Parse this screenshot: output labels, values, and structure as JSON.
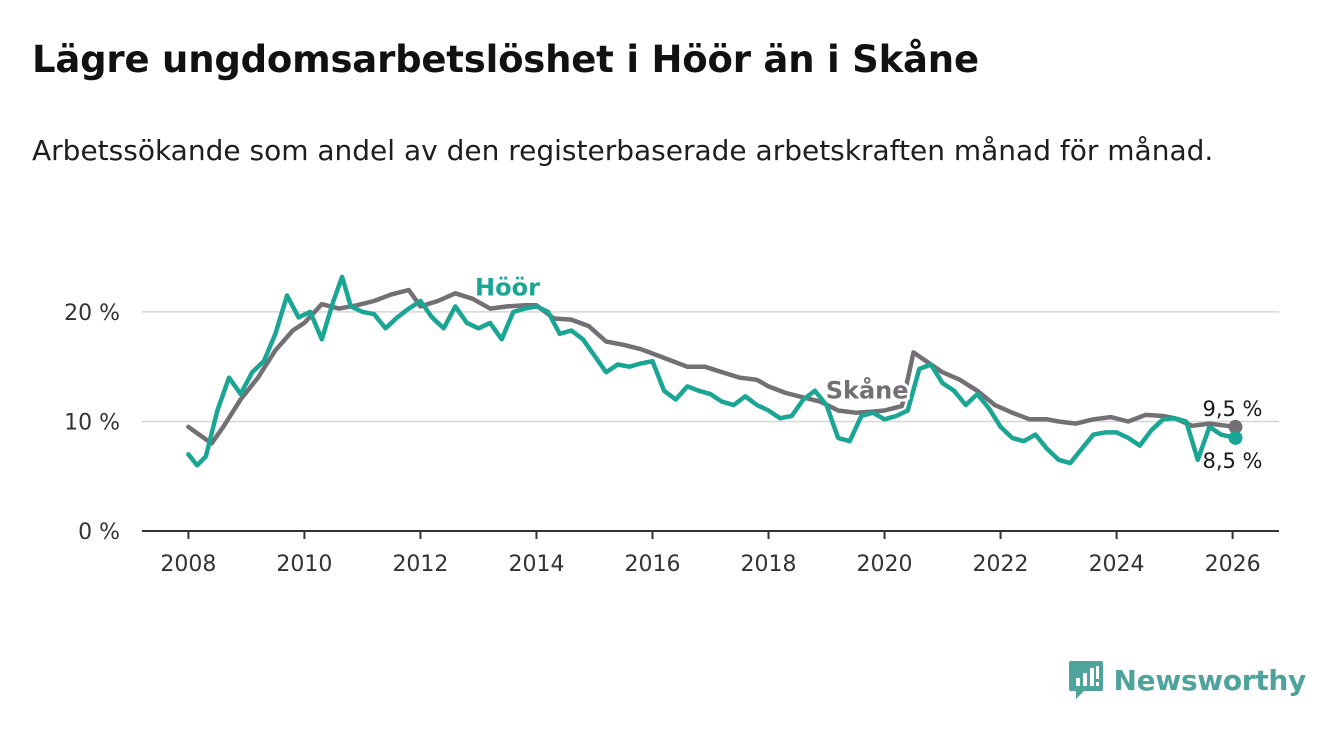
{
  "header": {
    "title": "Lägre ungdomsarbetslöshet i Höör än i Skåne",
    "subtitle": "Arbetssökande som andel av den registerbaserade arbetskraften månad för månad."
  },
  "brand": {
    "name": "Newsworthy",
    "color": "#4fa39d"
  },
  "chart_data": {
    "type": "line",
    "title": "Lägre ungdomsarbetslöshet i Höör än i Skåne",
    "xlabel": "",
    "ylabel": "",
    "xlim": [
      2007.2,
      2026.8
    ],
    "ylim": [
      0,
      22
    ],
    "x_ticks": [
      2008,
      2010,
      2012,
      2014,
      2016,
      2018,
      2020,
      2022,
      2024,
      2026
    ],
    "x_tick_labels": [
      "2008",
      "2010",
      "2012",
      "2014",
      "2016",
      "2018",
      "2020",
      "2022",
      "2024",
      "2026"
    ],
    "y_ticks": [
      0,
      10,
      20
    ],
    "y_tick_labels": [
      "0 %",
      "10 %",
      "20 %"
    ],
    "grid": true,
    "series": [
      {
        "name": "Skåne",
        "color": "#727075",
        "end_label": "9,5 %",
        "x": [
          2008.0,
          2008.4,
          2008.6,
          2008.9,
          2009.2,
          2009.5,
          2009.8,
          2010.0,
          2010.3,
          2010.6,
          2010.9,
          2011.2,
          2011.5,
          2011.8,
          2012.0,
          2012.3,
          2012.6,
          2012.9,
          2013.2,
          2013.5,
          2013.8,
          2014.0,
          2014.3,
          2014.6,
          2014.9,
          2015.2,
          2015.5,
          2015.8,
          2016.0,
          2016.3,
          2016.6,
          2016.9,
          2017.2,
          2017.5,
          2017.8,
          2018.0,
          2018.3,
          2018.6,
          2018.9,
          2019.2,
          2019.5,
          2019.8,
          2020.0,
          2020.3,
          2020.5,
          2020.8,
          2021.0,
          2021.3,
          2021.6,
          2021.9,
          2022.2,
          2022.5,
          2022.8,
          2023.0,
          2023.3,
          2023.6,
          2023.9,
          2024.2,
          2024.5,
          2024.8,
          2025.0,
          2025.3,
          2025.6,
          2025.9,
          2026.05
        ],
        "values": [
          9.5,
          8.0,
          9.5,
          12.0,
          14.0,
          16.5,
          18.3,
          19.0,
          20.7,
          20.3,
          20.6,
          21.0,
          21.6,
          22.0,
          20.5,
          21.0,
          21.7,
          21.2,
          20.3,
          20.5,
          20.6,
          20.6,
          19.4,
          19.3,
          18.7,
          17.3,
          17.0,
          16.6,
          16.2,
          15.6,
          15.0,
          15.0,
          14.5,
          14.0,
          13.8,
          13.2,
          12.6,
          12.2,
          11.8,
          11.0,
          10.8,
          10.9,
          11.0,
          11.4,
          16.3,
          15.2,
          14.5,
          13.8,
          12.8,
          11.5,
          10.8,
          10.2,
          10.2,
          10.0,
          9.8,
          10.2,
          10.4,
          10.0,
          10.6,
          10.5,
          10.3,
          9.6,
          9.8,
          9.6,
          9.5
        ]
      },
      {
        "name": "Höör",
        "color": "#1aa595",
        "end_label": "8,5 %",
        "x": [
          2008.0,
          2008.15,
          2008.3,
          2008.5,
          2008.7,
          2008.9,
          2009.1,
          2009.3,
          2009.5,
          2009.7,
          2009.9,
          2010.1,
          2010.3,
          2010.5,
          2010.65,
          2010.8,
          2011.0,
          2011.2,
          2011.4,
          2011.6,
          2011.8,
          2012.0,
          2012.2,
          2012.4,
          2012.6,
          2012.8,
          2013.0,
          2013.2,
          2013.4,
          2013.6,
          2013.8,
          2014.0,
          2014.2,
          2014.4,
          2014.6,
          2014.8,
          2015.0,
          2015.2,
          2015.4,
          2015.6,
          2015.8,
          2016.0,
          2016.2,
          2016.4,
          2016.6,
          2016.8,
          2017.0,
          2017.2,
          2017.4,
          2017.6,
          2017.8,
          2018.0,
          2018.2,
          2018.4,
          2018.6,
          2018.8,
          2019.0,
          2019.2,
          2019.4,
          2019.6,
          2019.8,
          2020.0,
          2020.2,
          2020.4,
          2020.6,
          2020.8,
          2021.0,
          2021.2,
          2021.4,
          2021.6,
          2021.8,
          2022.0,
          2022.2,
          2022.4,
          2022.6,
          2022.8,
          2023.0,
          2023.2,
          2023.4,
          2023.6,
          2023.8,
          2024.0,
          2024.2,
          2024.4,
          2024.6,
          2024.8,
          2025.0,
          2025.2,
          2025.4,
          2025.6,
          2025.8,
          2026.05
        ],
        "values": [
          7.0,
          6.0,
          6.8,
          11.0,
          14.0,
          12.5,
          14.5,
          15.5,
          18.0,
          21.5,
          19.5,
          20.0,
          17.5,
          21.0,
          23.2,
          20.5,
          20.0,
          19.8,
          18.5,
          19.5,
          20.3,
          21.0,
          19.5,
          18.5,
          20.5,
          19.0,
          18.5,
          19.0,
          17.5,
          20.0,
          20.3,
          20.5,
          20.0,
          18.0,
          18.3,
          17.5,
          16.0,
          14.5,
          15.2,
          15.0,
          15.3,
          15.5,
          12.8,
          12.0,
          13.2,
          12.8,
          12.5,
          11.8,
          11.5,
          12.3,
          11.5,
          11.0,
          10.3,
          10.5,
          12.0,
          12.8,
          11.5,
          8.5,
          8.2,
          10.5,
          10.8,
          10.2,
          10.5,
          11.0,
          14.8,
          15.2,
          13.5,
          12.8,
          11.5,
          12.5,
          11.2,
          9.5,
          8.5,
          8.2,
          8.8,
          7.5,
          6.5,
          6.2,
          7.5,
          8.8,
          9.0,
          9.0,
          8.5,
          7.8,
          9.2,
          10.2,
          10.3,
          10.0,
          6.5,
          9.5,
          8.8,
          8.5
        ]
      }
    ],
    "annotations": [
      {
        "text": "Höör",
        "x": 2013.5,
        "y": 21.5,
        "series": "Höör"
      },
      {
        "text": "Skåne",
        "x": 2019.7,
        "y": 12.1,
        "series": "Skåne"
      }
    ]
  }
}
